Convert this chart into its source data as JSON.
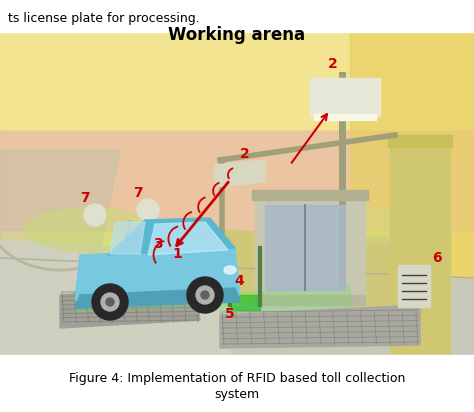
{
  "title_top": "Working arena",
  "caption": "Figure 4: Implementation of RFID based toll collection\nsystem",
  "top_text": "ts license plate for processing.",
  "label_color": "#cc0000",
  "bg_sky": "#f0e090",
  "bg_pink": "#e8b0b8",
  "bg_yellow_right": "#f0d870",
  "road_color": "#c0c0b0",
  "ground_color": "#d8c888",
  "booth_color": "#c8c8b0",
  "car_body_color": "#70c8e0",
  "car_roof_color": "#50b8d0",
  "sensor_color": "#a8a8a0",
  "green_gate": "#40c840",
  "pole_color": "#909878",
  "wall_right_color": "#d8c870"
}
